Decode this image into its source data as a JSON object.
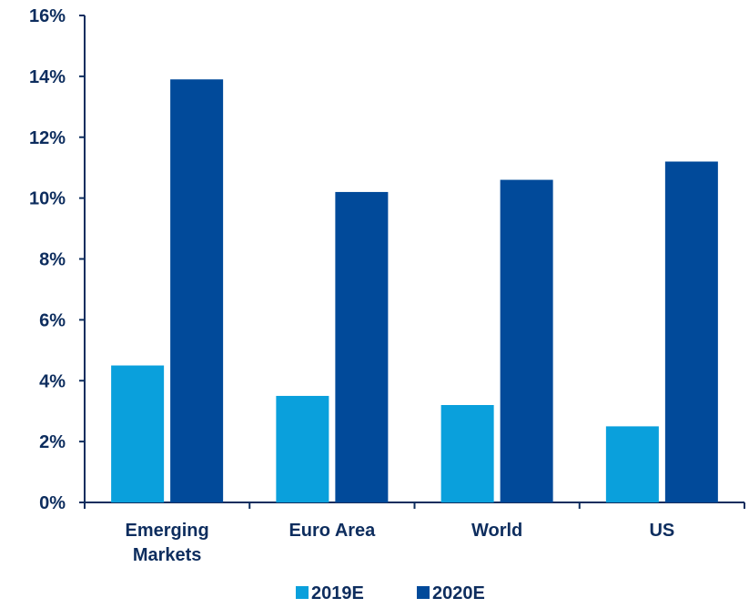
{
  "chart_data": {
    "type": "bar",
    "categories": [
      [
        "Emerging",
        "Markets"
      ],
      [
        "Euro Area"
      ],
      [
        "World"
      ],
      [
        "US"
      ]
    ],
    "series": [
      {
        "name": "2019E",
        "color": "#0aa0dc",
        "values": [
          4.5,
          3.5,
          3.2,
          2.5
        ]
      },
      {
        "name": "2020E",
        "color": "#014a9a",
        "values": [
          13.9,
          10.2,
          10.6,
          11.2
        ]
      }
    ],
    "y_ticks": [
      "0%",
      "2%",
      "4%",
      "6%",
      "8%",
      "10%",
      "12%",
      "14%",
      "16%"
    ],
    "ylim": [
      0,
      16
    ],
    "grid": false,
    "legend_position": "bottom",
    "axis_color": "#0d2d5e"
  }
}
